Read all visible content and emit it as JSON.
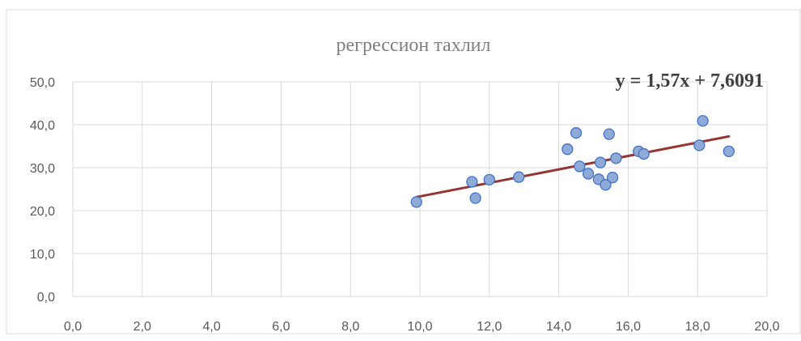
{
  "chart_data": {
    "type": "scatter",
    "title": "регрессион тахлил",
    "xlabel": "",
    "ylabel": "",
    "xlim": [
      0,
      20
    ],
    "ylim": [
      0,
      50
    ],
    "x_ticks": [
      "0,0",
      "2,0",
      "4,0",
      "6,0",
      "8,0",
      "10,0",
      "12,0",
      "14,0",
      "16,0",
      "18,0",
      "20,0"
    ],
    "y_ticks": [
      "0,0",
      "10,0",
      "20,0",
      "30,0",
      "40,0",
      "50,0"
    ],
    "grid": true,
    "legend": "none",
    "series": [
      {
        "points": [
          {
            "x": 9.9,
            "y": 22.0
          },
          {
            "x": 11.5,
            "y": 26.7
          },
          {
            "x": 11.6,
            "y": 22.9
          },
          {
            "x": 12.0,
            "y": 27.2
          },
          {
            "x": 12.85,
            "y": 27.8
          },
          {
            "x": 14.25,
            "y": 34.3
          },
          {
            "x": 14.5,
            "y": 38.1
          },
          {
            "x": 14.6,
            "y": 30.3
          },
          {
            "x": 14.85,
            "y": 28.6
          },
          {
            "x": 15.15,
            "y": 27.3
          },
          {
            "x": 15.2,
            "y": 31.2
          },
          {
            "x": 15.35,
            "y": 26.0
          },
          {
            "x": 15.45,
            "y": 37.8
          },
          {
            "x": 15.55,
            "y": 27.7
          },
          {
            "x": 15.65,
            "y": 32.2
          },
          {
            "x": 16.3,
            "y": 33.8
          },
          {
            "x": 16.45,
            "y": 33.2
          },
          {
            "x": 18.05,
            "y": 35.2
          },
          {
            "x": 18.15,
            "y": 40.9
          },
          {
            "x": 18.9,
            "y": 33.8
          }
        ]
      }
    ],
    "trendline": {
      "type": "linear",
      "slope": 1.57,
      "intercept": 7.6091,
      "x_range": [
        9.9,
        18.9
      ],
      "label": "y = 1,57x + 7,6091"
    },
    "colors": {
      "marker_fill": "#8eaad6",
      "marker_stroke": "#4472c4",
      "trendline": "#943634",
      "gridline": "#d9d9d9",
      "border": "#d9d9d9"
    }
  }
}
